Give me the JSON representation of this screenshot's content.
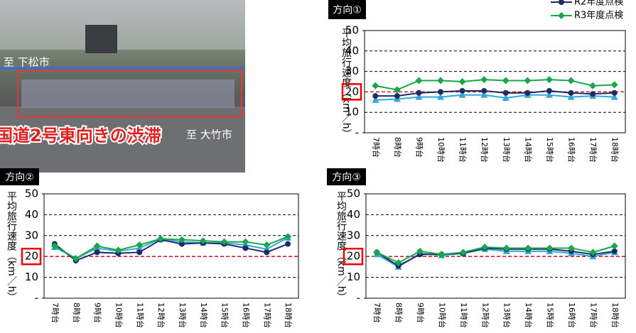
{
  "photo": {
    "labels": [
      "至 下松市",
      "至 大竹市"
    ],
    "caption": "国道2号東向きの渋滞"
  },
  "chart_data": [
    {
      "type": "line",
      "title": "方向①",
      "y_label": "平均旅行速度（km／h）",
      "categories": [
        "7時台",
        "8時台",
        "9時台",
        "10時台",
        "11時台",
        "12時台",
        "13時台",
        "14時台",
        "15時台",
        "16時台",
        "17時台",
        "18時台"
      ],
      "series": [
        {
          "color": "#33a8d8",
          "marker": "triangle",
          "values": [
            16,
            16.5,
            17.5,
            17.5,
            18.5,
            18.5,
            17,
            18.5,
            18.5,
            17.5,
            18,
            17.5
          ]
        },
        {
          "name": "R2年度点検",
          "color": "#1f2a6b",
          "marker": "circle",
          "values": [
            18,
            18,
            19.5,
            20,
            20.5,
            20.5,
            19.5,
            19.5,
            20.5,
            19.5,
            19,
            19.5
          ]
        },
        {
          "name": "R3年度点検",
          "color": "#17a84a",
          "marker": "diamond",
          "values": [
            23,
            21,
            25.5,
            25.5,
            25,
            26,
            25.5,
            25.5,
            26,
            25.5,
            23,
            23.5
          ]
        }
      ],
      "ylim": [
        0,
        50
      ],
      "yticks": [
        {
          "value": 0,
          "label": "-"
        },
        10,
        20,
        30,
        40,
        50
      ],
      "reference_line": {
        "value": 20,
        "color": "#c00000"
      },
      "grid": true,
      "legend": "top-right"
    },
    {
      "type": "line",
      "title": "方向②",
      "y_label": "平均旅行速度（km／h）",
      "categories": [
        "7時台",
        "8時台",
        "9時台",
        "10時台",
        "11時台",
        "12時台",
        "13時台",
        "14時台",
        "15時台",
        "16時台",
        "17時台",
        "18時台"
      ],
      "series": [
        {
          "color": "#33a8d8",
          "marker": "triangle",
          "values": [
            24.5,
            19,
            24,
            22.5,
            24,
            28.5,
            27,
            26.5,
            26.5,
            25.5,
            23.5,
            29
          ]
        },
        {
          "color": "#1f2a6b",
          "marker": "circle",
          "values": [
            26,
            18,
            22,
            21.5,
            22,
            28,
            26,
            26.5,
            26,
            24,
            22,
            26
          ]
        },
        {
          "color": "#17a84a",
          "marker": "diamond",
          "values": [
            25,
            19,
            25,
            23,
            25.5,
            28.5,
            28,
            27.5,
            27,
            27,
            25.5,
            29.5
          ]
        }
      ],
      "ylim": [
        0,
        50
      ],
      "yticks": [
        {
          "value": 0,
          "label": "-"
        },
        10,
        20,
        30,
        40,
        50
      ],
      "reference_line": {
        "value": 20,
        "color": "#c00000"
      },
      "grid": true
    },
    {
      "type": "line",
      "title": "方向③",
      "y_label": "平均旅行速度（km／h）",
      "categories": [
        "7時台",
        "8時台",
        "9時台",
        "10時台",
        "11時台",
        "12時台",
        "13時台",
        "14時台",
        "15時台",
        "16時台",
        "17時台",
        "18時台"
      ],
      "series": [
        {
          "color": "#33a8d8",
          "marker": "triangle",
          "values": [
            21,
            15,
            21.5,
            20.5,
            21.5,
            23.5,
            22.5,
            22.5,
            22.5,
            21.5,
            20,
            22
          ]
        },
        {
          "color": "#1f2a6b",
          "marker": "circle",
          "values": [
            22,
            15.5,
            21,
            21,
            21.5,
            24,
            23.5,
            23.5,
            23.5,
            22.5,
            21,
            22.5
          ]
        },
        {
          "color": "#17a84a",
          "marker": "diamond",
          "values": [
            22,
            17,
            22.5,
            21,
            22,
            24.5,
            24,
            24,
            24,
            24,
            22,
            25
          ]
        }
      ],
      "ylim": [
        0,
        50
      ],
      "yticks": [
        {
          "value": 0,
          "label": "-"
        },
        10,
        20,
        30,
        40,
        50
      ],
      "reference_line": {
        "value": 20,
        "color": "#c00000"
      },
      "grid": true
    }
  ]
}
